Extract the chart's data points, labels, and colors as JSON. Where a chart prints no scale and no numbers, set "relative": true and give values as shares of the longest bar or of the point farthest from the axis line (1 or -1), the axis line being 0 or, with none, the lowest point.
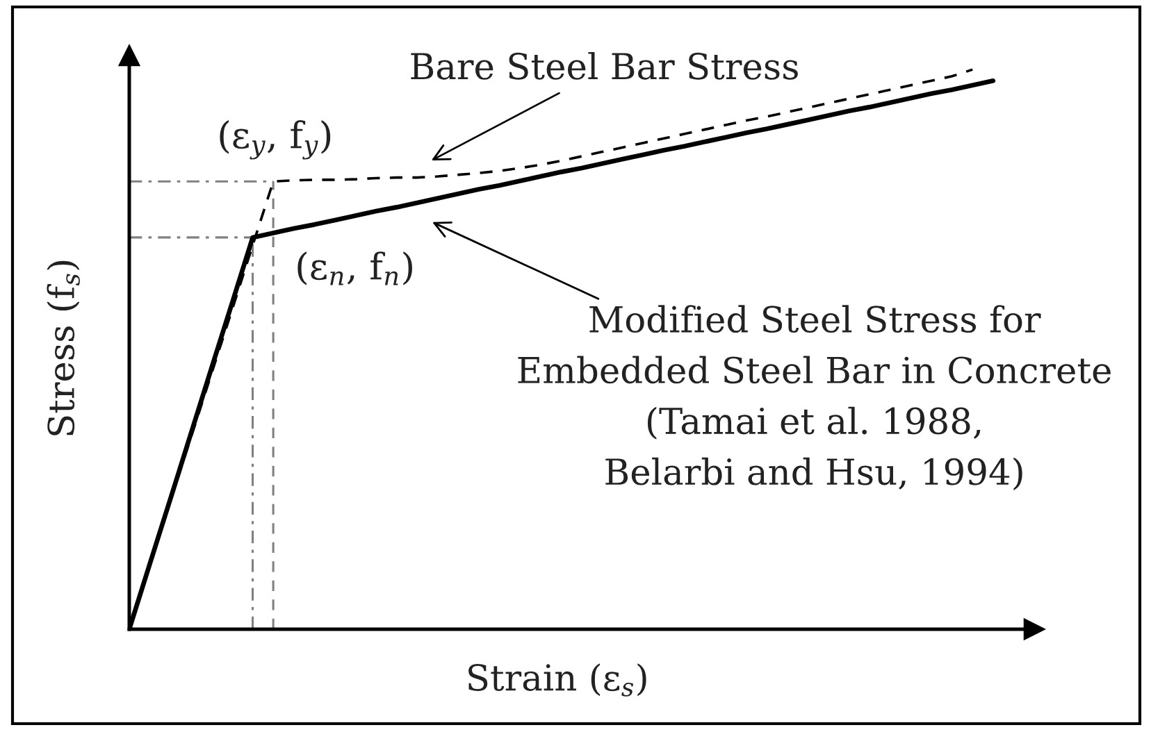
{
  "chart_data": {
    "type": "line",
    "relative": true,
    "xlabel": "Strain (ε$_{s}$)",
    "ylabel": "Stress (f$_{s}$)",
    "categories": [
      null,
      null,
      null,
      null,
      null,
      null,
      null,
      null,
      null,
      null,
      null,
      null,
      null,
      null,
      null,
      null,
      null,
      null,
      null,
      null,
      null,
      null,
      null,
      null,
      null,
      null,
      null,
      null,
      null,
      null,
      null,
      null,
      null,
      null,
      null,
      null,
      null,
      null,
      null,
      null,
      null,
      null,
      null,
      null,
      null
    ],
    "series": [
      {
        "name": "Bare Steel Bar Stress",
        "color": "#000000",
        "line_style": "dashed",
        "values": [
          0,
          0.114,
          0.229,
          0.343,
          0.457,
          0.571,
          0.686,
          0.8,
          0.802,
          0.803,
          0.803,
          0.804,
          0.806,
          0.807,
          0.807,
          0.809,
          0.812,
          0.815,
          0.819,
          0.824,
          0.83,
          0.837,
          0.845,
          0.853,
          0.861,
          0.869,
          0.877,
          0.885,
          0.893,
          0.901,
          0.909,
          0.916,
          0.924,
          0.932,
          0.94,
          0.948,
          0.956,
          0.964,
          0.972,
          0.98,
          0.988,
          1.0,
          null,
          null,
          null
        ]
      },
      {
        "name": "Modified Steel Stress for\nEmbedded Steel Bar in Concrete\n(Tamai et al. 1988,\nBelarbi and Hsu, 1994)",
        "color": "#000000",
        "line_style": "solid",
        "values": [
          0,
          0.117,
          0.233,
          0.35,
          0.467,
          0.583,
          0.7,
          0.708,
          0.716,
          0.723,
          0.731,
          0.739,
          0.747,
          0.754,
          0.762,
          0.77,
          0.778,
          0.786,
          0.793,
          0.801,
          0.809,
          0.817,
          0.824,
          0.832,
          0.84,
          0.848,
          0.856,
          0.863,
          0.871,
          0.879,
          0.887,
          0.894,
          0.902,
          0.91,
          0.918,
          0.926,
          0.933,
          0.941,
          0.949,
          0.957,
          0.964,
          0.972,
          0.98,
          null,
          null
        ]
      }
    ],
    "ref_lines": [
      {
        "axis": "y",
        "value": 0.8,
        "color": "#808080",
        "line_style": "dashdot"
      },
      {
        "axis": "y",
        "value": 0.7,
        "color": "#808080",
        "line_style": "dashdot"
      }
    ],
    "annotations": [
      "(ε$_{y}$, f$_{y}$)",
      "(ε$_{n}$, f$_{n}$)"
    ]
  }
}
